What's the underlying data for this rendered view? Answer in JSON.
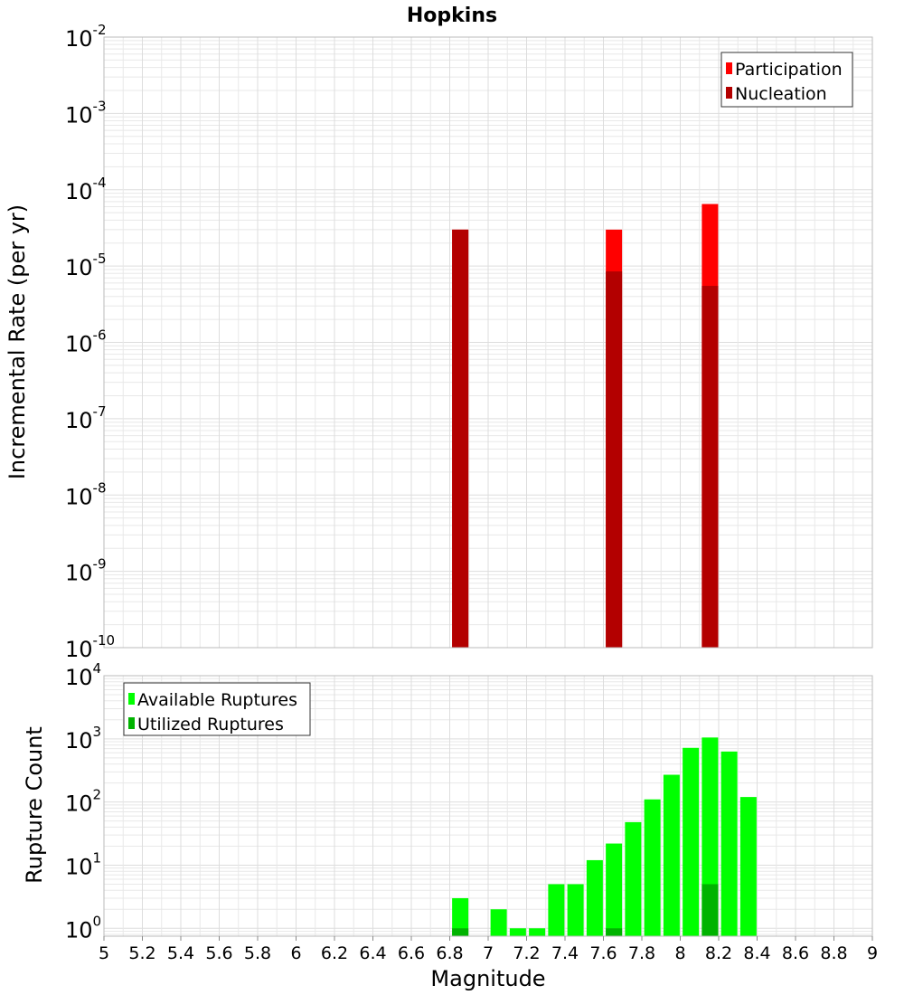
{
  "title": "Hopkins",
  "colors": {
    "participation": "#ff0000",
    "nucleation": "#b30000",
    "available": "#00ff00",
    "utilized": "#00b300",
    "grid": "#e8e8e8",
    "frame": "#bbbbbb"
  },
  "chart_data": [
    {
      "type": "bar",
      "ylabel": "Incremental Rate (per yr)",
      "yscale": "log",
      "ylim": [
        1e-10,
        0.01
      ],
      "xlim": [
        5,
        9
      ],
      "grid": true,
      "legend_position": "top-right",
      "series": [
        {
          "name": "Participation",
          "x": [
            6.85,
            7.65,
            8.15
          ],
          "values": [
            3e-05,
            3e-05,
            6.5e-05
          ]
        },
        {
          "name": "Nucleation",
          "x": [
            6.85,
            7.65,
            8.15
          ],
          "values": [
            3e-05,
            8.5e-06,
            5.5e-06
          ]
        }
      ],
      "yticks": [
        {
          "base": "10",
          "exp": "-2"
        },
        {
          "base": "10",
          "exp": "-3"
        },
        {
          "base": "10",
          "exp": "-4"
        },
        {
          "base": "10",
          "exp": "-5"
        },
        {
          "base": "10",
          "exp": "-6"
        },
        {
          "base": "10",
          "exp": "-7"
        },
        {
          "base": "10",
          "exp": "-8"
        },
        {
          "base": "10",
          "exp": "-9"
        },
        {
          "base": "10",
          "exp": "-10"
        }
      ]
    },
    {
      "type": "bar",
      "xlabel": "Magnitude",
      "ylabel": "Rupture Count",
      "yscale": "log",
      "ylim": [
        0.75,
        10000
      ],
      "xlim": [
        5,
        9
      ],
      "grid": true,
      "legend_position": "top-left",
      "series": [
        {
          "name": "Available Ruptures",
          "x": [
            6.85,
            7.05,
            7.15,
            7.25,
            7.35,
            7.45,
            7.55,
            7.65,
            7.75,
            7.85,
            7.95,
            8.05,
            8.15,
            8.25,
            8.35
          ],
          "values": [
            3,
            2,
            1,
            1,
            5,
            5,
            12,
            22,
            48,
            110,
            270,
            720,
            1050,
            630,
            120
          ]
        },
        {
          "name": "Utilized Ruptures",
          "x": [
            6.85,
            7.65,
            8.15
          ],
          "values": [
            1,
            1,
            5
          ]
        }
      ],
      "yticks": [
        {
          "base": "10",
          "exp": "4"
        },
        {
          "base": "10",
          "exp": "3"
        },
        {
          "base": "10",
          "exp": "2"
        },
        {
          "base": "10",
          "exp": "1"
        },
        {
          "base": "10",
          "exp": "0"
        }
      ],
      "xticks": [
        "5",
        "5.2",
        "5.4",
        "5.6",
        "5.8",
        "6",
        "6.2",
        "6.4",
        "6.6",
        "6.8",
        "7",
        "7.2",
        "7.4",
        "7.6",
        "7.8",
        "8",
        "8.2",
        "8.4",
        "8.6",
        "8.8",
        "9"
      ]
    }
  ]
}
